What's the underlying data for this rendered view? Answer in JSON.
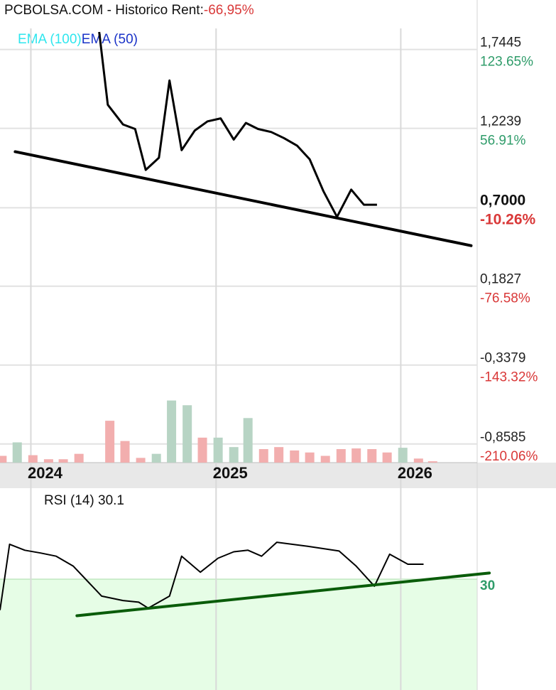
{
  "header": {
    "site": "PCBOLSA.COM",
    "separator": "-",
    "section": "Historico",
    "rent_label": "Rent:",
    "rent_value": "-66,95%"
  },
  "legend": {
    "ema100": "EMA (100)",
    "ema50": "EMA (50)"
  },
  "colors": {
    "up_volume": "#b7d4c4",
    "down_volume": "#f2aeae",
    "positive_pct": "#2f9c6a",
    "negative_pct": "#d93838",
    "rsi_zone": "#e6fde6",
    "rsi_trend": "#0a5c0a"
  },
  "chart_data": [
    {
      "type": "line",
      "price_axis": [
        {
          "price": "1,7445",
          "pct": "123.65%",
          "value": 1.7445
        },
        {
          "price": "1,2239",
          "pct": "56.91%",
          "value": 1.2239
        },
        {
          "price": "0,7000",
          "pct": "-10.26%",
          "value": 0.7,
          "current": true
        },
        {
          "price": "0,1827",
          "pct": "-76.58%",
          "value": 0.1827
        },
        {
          "price": "-0,3379",
          "pct": "-143.32%",
          "value": -0.3379
        },
        {
          "price": "-0,8585",
          "pct": "-210.06%",
          "value": -0.8585
        }
      ],
      "ylim": [
        -0.93,
        1.86
      ],
      "xlim": [
        "2023-11-01",
        "2026-06-01"
      ],
      "x_ticks": [
        {
          "label": "2024",
          "date": "2024-01-01"
        },
        {
          "label": "2025",
          "date": "2025-01-01"
        },
        {
          "label": "2026",
          "date": "2026-01-01"
        }
      ],
      "series": [
        {
          "color": "#000000",
          "points": [
            [
              "2024-05-15",
              1.86
            ],
            [
              "2024-06-01",
              1.38
            ],
            [
              "2024-07-01",
              1.25
            ],
            [
              "2024-07-25",
              1.22
            ],
            [
              "2024-08-15",
              0.95
            ],
            [
              "2024-09-10",
              1.03
            ],
            [
              "2024-10-01",
              1.54
            ],
            [
              "2024-10-25",
              1.08
            ],
            [
              "2024-11-20",
              1.21
            ],
            [
              "2024-12-15",
              1.27
            ],
            [
              "2025-01-10",
              1.29
            ],
            [
              "2025-02-05",
              1.15
            ],
            [
              "2025-03-01",
              1.26
            ],
            [
              "2025-03-25",
              1.22
            ],
            [
              "2025-04-20",
              1.2
            ],
            [
              "2025-05-15",
              1.16
            ],
            [
              "2025-06-10",
              1.11
            ],
            [
              "2025-07-05",
              1.02
            ],
            [
              "2025-08-01",
              0.81
            ],
            [
              "2025-08-28",
              0.64
            ],
            [
              "2025-09-25",
              0.82
            ],
            [
              "2025-10-20",
              0.72
            ],
            [
              "2025-11-15",
              0.72
            ]
          ]
        }
      ],
      "trendline": {
        "from": [
          "2023-12-01",
          1.07
        ],
        "to": [
          "2026-05-20",
          0.45
        ]
      },
      "volume_bars": [
        {
          "date": "2023-11-05",
          "value": 10,
          "direction": "down"
        },
        {
          "date": "2023-12-05",
          "value": 30,
          "direction": "up"
        },
        {
          "date": "2024-01-05",
          "value": 11,
          "direction": "down"
        },
        {
          "date": "2024-02-05",
          "value": 5,
          "direction": "down"
        },
        {
          "date": "2024-03-05",
          "value": 5,
          "direction": "down"
        },
        {
          "date": "2024-04-05",
          "value": 13,
          "direction": "down"
        },
        {
          "date": "2024-06-05",
          "value": 62,
          "direction": "down"
        },
        {
          "date": "2024-07-05",
          "value": 32,
          "direction": "down"
        },
        {
          "date": "2024-08-05",
          "value": 7,
          "direction": "down"
        },
        {
          "date": "2024-09-05",
          "value": 13,
          "direction": "up"
        },
        {
          "date": "2024-10-05",
          "value": 92,
          "direction": "up"
        },
        {
          "date": "2024-11-05",
          "value": 85,
          "direction": "up"
        },
        {
          "date": "2024-12-05",
          "value": 37,
          "direction": "down"
        },
        {
          "date": "2025-01-05",
          "value": 37,
          "direction": "up"
        },
        {
          "date": "2025-02-05",
          "value": 23,
          "direction": "up"
        },
        {
          "date": "2025-03-05",
          "value": 66,
          "direction": "up"
        },
        {
          "date": "2025-04-05",
          "value": 20,
          "direction": "down"
        },
        {
          "date": "2025-05-05",
          "value": 23,
          "direction": "down"
        },
        {
          "date": "2025-06-05",
          "value": 18,
          "direction": "down"
        },
        {
          "date": "2025-07-05",
          "value": 15,
          "direction": "down"
        },
        {
          "date": "2025-08-05",
          "value": 10,
          "direction": "down"
        },
        {
          "date": "2025-09-05",
          "value": 20,
          "direction": "down"
        },
        {
          "date": "2025-10-05",
          "value": 21,
          "direction": "down"
        },
        {
          "date": "2025-11-05",
          "value": 20,
          "direction": "down"
        },
        {
          "date": "2025-12-05",
          "value": 15,
          "direction": "down"
        },
        {
          "date": "2026-01-05",
          "value": 22,
          "direction": "up"
        },
        {
          "date": "2026-02-05",
          "value": 6,
          "direction": "down"
        },
        {
          "date": "2026-03-05",
          "value": 2,
          "direction": "down"
        }
      ],
      "volume_max": 100
    },
    {
      "type": "line",
      "title": "RSI (14) 30.1",
      "level": {
        "label": "30",
        "value": 30
      },
      "ylim": [
        0,
        50
      ],
      "rsi": [
        [
          "2023-11-01",
          20
        ],
        [
          "2023-11-20",
          36.5
        ],
        [
          "2023-12-20",
          35
        ],
        [
          "2024-01-20",
          34.3
        ],
        [
          "2024-02-20",
          33.5
        ],
        [
          "2024-03-25",
          31
        ],
        [
          "2024-05-20",
          23.5
        ],
        [
          "2024-07-01",
          22.4
        ],
        [
          "2024-08-01",
          22
        ],
        [
          "2024-08-20",
          20.5
        ],
        [
          "2024-10-01",
          23.5
        ],
        [
          "2024-10-25",
          33.5
        ],
        [
          "2024-12-01",
          29.5
        ],
        [
          "2025-01-05",
          33
        ],
        [
          "2025-02-05",
          34.6
        ],
        [
          "2025-03-05",
          35
        ],
        [
          "2025-04-01",
          33.5
        ],
        [
          "2025-05-01",
          37
        ],
        [
          "2025-07-01",
          36
        ],
        [
          "2025-09-01",
          34.8
        ],
        [
          "2025-10-05",
          31
        ],
        [
          "2025-11-10",
          26
        ],
        [
          "2025-12-10",
          34
        ],
        [
          "2026-01-15",
          31.5
        ],
        [
          "2026-02-15",
          31.5
        ]
      ],
      "trendline": {
        "from": [
          "2024-04-01",
          18.6
        ],
        "to": [
          "2026-06-25",
          29.3
        ]
      }
    }
  ]
}
